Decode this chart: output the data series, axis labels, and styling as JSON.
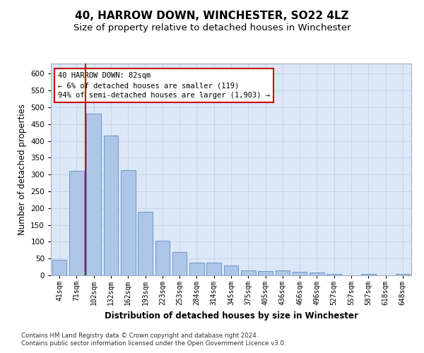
{
  "title": "40, HARROW DOWN, WINCHESTER, SO22 4LZ",
  "subtitle": "Size of property relative to detached houses in Winchester",
  "xlabel": "Distribution of detached houses by size in Winchester",
  "ylabel": "Number of detached properties",
  "categories": [
    "41sqm",
    "71sqm",
    "102sqm",
    "132sqm",
    "162sqm",
    "193sqm",
    "223sqm",
    "253sqm",
    "284sqm",
    "314sqm",
    "345sqm",
    "375sqm",
    "405sqm",
    "436sqm",
    "466sqm",
    "496sqm",
    "527sqm",
    "557sqm",
    "587sqm",
    "618sqm",
    "648sqm"
  ],
  "values": [
    46,
    311,
    480,
    415,
    312,
    190,
    102,
    70,
    38,
    38,
    30,
    14,
    13,
    15,
    10,
    8,
    4,
    0,
    5,
    0,
    5
  ],
  "bar_color": "#aec6e8",
  "bar_edge_color": "#5a8fc4",
  "red_line_x": 1.5,
  "annotation_line1": "40 HARROW DOWN: 82sqm",
  "annotation_line2": "← 6% of detached houses are smaller (119)",
  "annotation_line3": "94% of semi-detached houses are larger (1,903) →",
  "annotation_box_color": "#ffffff",
  "annotation_box_edge": "#cc0000",
  "ylim": [
    0,
    630
  ],
  "yticks": [
    0,
    50,
    100,
    150,
    200,
    250,
    300,
    350,
    400,
    450,
    500,
    550,
    600
  ],
  "footer1": "Contains HM Land Registry data © Crown copyright and database right 2024.",
  "footer2": "Contains public sector information licensed under the Open Government Licence v3.0.",
  "title_fontsize": 11,
  "subtitle_fontsize": 9.5,
  "ylabel_fontsize": 8.5,
  "xlabel_fontsize": 8.5,
  "tick_fontsize": 7,
  "annot_fontsize": 7.5,
  "grid_color": "#c8d4e8",
  "background_color": "#dce8f8"
}
